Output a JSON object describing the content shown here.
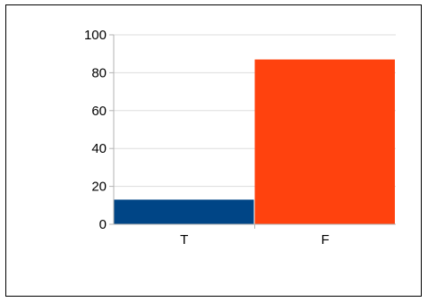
{
  "chart_data": {
    "type": "bar",
    "categories": [
      "T",
      "F"
    ],
    "values": [
      13,
      87
    ],
    "colors": [
      "#004586",
      "#ff420e"
    ],
    "ylim": [
      0,
      100
    ],
    "yticks": [
      0,
      20,
      40,
      60,
      80,
      100
    ],
    "ytick_labels": [
      "0",
      "20",
      "40",
      "60",
      "80",
      "100"
    ],
    "grid": true,
    "gridline_color": "#dddddd",
    "title": "",
    "xlabel": "",
    "ylabel": ""
  }
}
